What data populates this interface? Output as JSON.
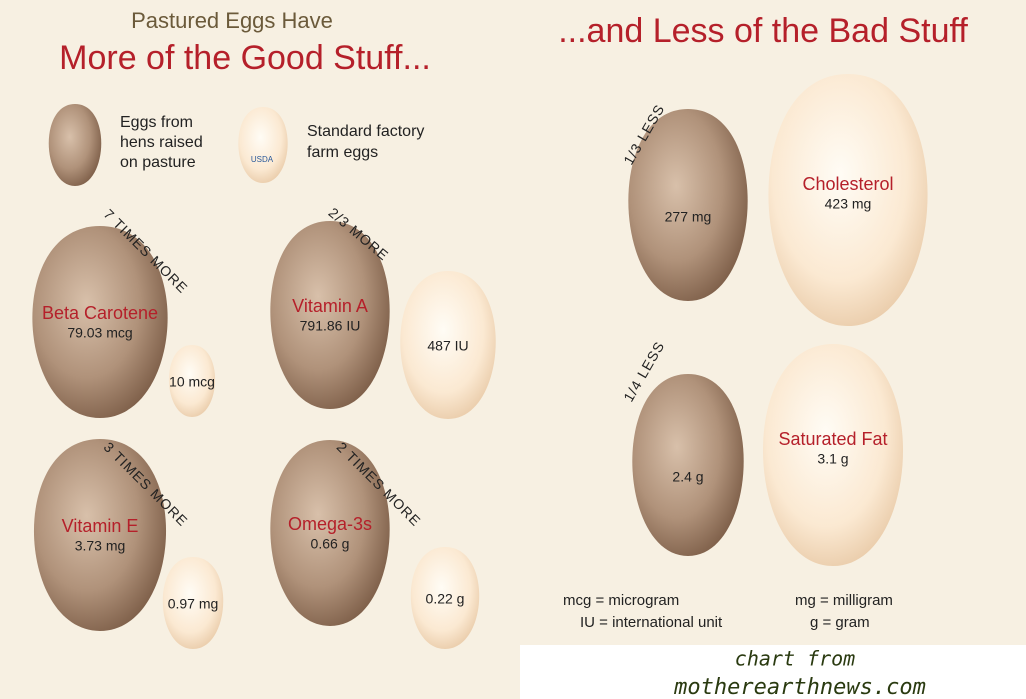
{
  "header": {
    "kicker": "Pastured Eggs Have",
    "title_left": "More of the Good Stuff...",
    "title_right": "...and Less of the Bad Stuff"
  },
  "legend": [
    {
      "lines": [
        "Eggs from",
        "hens raised",
        "on pasture"
      ]
    },
    {
      "lines": [
        "Standard factory",
        "farm eggs"
      ],
      "stamp": "USDA"
    }
  ],
  "comparisons": [
    {
      "badge": "7 TIMES MORE",
      "nutrient": "Beta Carotene",
      "pastured": "79.03 mcg",
      "factory": "10 mcg"
    },
    {
      "badge": "2/3 MORE",
      "nutrient": "Vitamin A",
      "pastured": "791.86 IU",
      "factory": "487 IU"
    },
    {
      "badge": "3 TIMES MORE",
      "nutrient": "Vitamin E",
      "pastured": "3.73 mg",
      "factory": "0.97 mg"
    },
    {
      "badge": "2 TIMES MORE",
      "nutrient": "Omega-3s",
      "pastured": "0.66 g",
      "factory": "0.22 g"
    },
    {
      "badge": "1/3 LESS",
      "nutrient": "Cholesterol",
      "pastured": "277 mg",
      "factory": "423 mg"
    },
    {
      "badge": "1/4 LESS",
      "nutrient": "Saturated Fat",
      "pastured": "2.4 g",
      "factory": "3.1 g"
    }
  ],
  "units": [
    "mcg = microgram",
    "mg = milligram",
    "IU = international unit",
    "g = gram"
  ],
  "credit": [
    "chart from",
    "motherearthnews.com"
  ]
}
